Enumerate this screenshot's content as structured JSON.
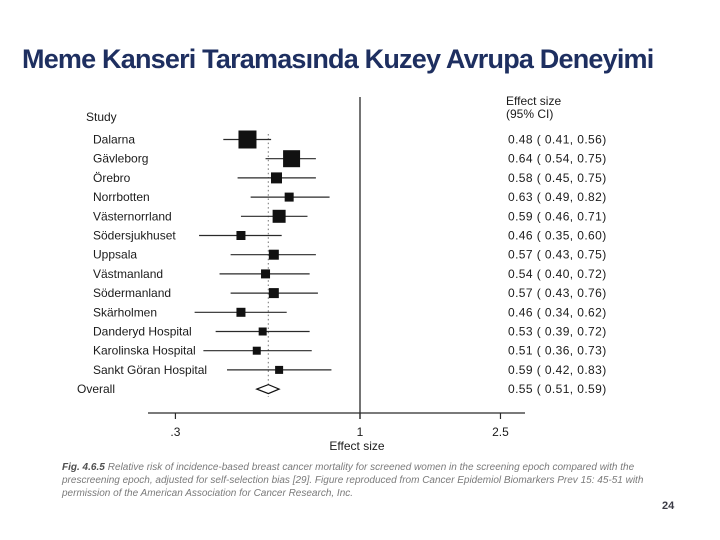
{
  "slide": {
    "title": "Meme Kanseri Taramasında Kuzey Avrupa Deneyimi",
    "page_number": "24",
    "title_color": "#1e2f60"
  },
  "caption": {
    "fig_label": "Fig. 4.6.5",
    "text": "Relative risk of incidence-based breast cancer mortality for screened women in the screening epoch compared with the prescreening epoch, adjusted for self-selection bias [29]. Figure reproduced from Cancer Epidemiol Biomarkers Prev 15: 45-51 with permission of the American Association for Cancer Research, Inc."
  },
  "chart_data": {
    "type": "forest",
    "scale": "log",
    "column_headers": {
      "study": "Study",
      "effect_line1": "Effect size",
      "effect_line2": "(95% CI)"
    },
    "studies": [
      {
        "label": "Dalarna",
        "effect": 0.48,
        "ci_low": 0.41,
        "ci_high": 0.56,
        "display": "0.48 ( 0.41, 0.56)",
        "marker_px": 18
      },
      {
        "label": "Gävleborg",
        "effect": 0.64,
        "ci_low": 0.54,
        "ci_high": 0.75,
        "display": "0.64 ( 0.54, 0.75)",
        "marker_px": 17
      },
      {
        "label": "Örebro",
        "effect": 0.58,
        "ci_low": 0.45,
        "ci_high": 0.75,
        "display": "0.58 ( 0.45, 0.75)",
        "marker_px": 11
      },
      {
        "label": "Norrbotten",
        "effect": 0.63,
        "ci_low": 0.49,
        "ci_high": 0.82,
        "display": "0.63 ( 0.49, 0.82)",
        "marker_px": 9
      },
      {
        "label": "Västernorrland",
        "effect": 0.59,
        "ci_low": 0.46,
        "ci_high": 0.71,
        "display": "0.59 ( 0.46, 0.71)",
        "marker_px": 13
      },
      {
        "label": "Södersjukhuset",
        "effect": 0.46,
        "ci_low": 0.35,
        "ci_high": 0.6,
        "display": "0.46 ( 0.35, 0.60)",
        "marker_px": 9
      },
      {
        "label": "Uppsala",
        "effect": 0.57,
        "ci_low": 0.43,
        "ci_high": 0.75,
        "display": "0.57 ( 0.43, 0.75)",
        "marker_px": 10
      },
      {
        "label": "Västmanland",
        "effect": 0.54,
        "ci_low": 0.4,
        "ci_high": 0.72,
        "display": "0.54 ( 0.40, 0.72)",
        "marker_px": 9
      },
      {
        "label": "Södermanland",
        "effect": 0.57,
        "ci_low": 0.43,
        "ci_high": 0.76,
        "display": "0.57 ( 0.43, 0.76)",
        "marker_px": 10
      },
      {
        "label": "Skärholmen",
        "effect": 0.46,
        "ci_low": 0.34,
        "ci_high": 0.62,
        "display": "0.46 ( 0.34, 0.62)",
        "marker_px": 9
      },
      {
        "label": "Danderyd Hospital",
        "effect": 0.53,
        "ci_low": 0.39,
        "ci_high": 0.72,
        "display": "0.53 ( 0.39, 0.72)",
        "marker_px": 8
      },
      {
        "label": "Karolinska Hospital",
        "effect": 0.51,
        "ci_low": 0.36,
        "ci_high": 0.73,
        "display": "0.51 ( 0.36, 0.73)",
        "marker_px": 8
      },
      {
        "label": "Sankt Göran Hospital",
        "effect": 0.59,
        "ci_low": 0.42,
        "ci_high": 0.83,
        "display": "0.59 ( 0.42, 0.83)",
        "marker_px": 8
      }
    ],
    "overall": {
      "label": "Overall",
      "effect": 0.55,
      "ci_low": 0.51,
      "ci_high": 0.59,
      "display": "0.55 ( 0.51, 0.59)"
    },
    "x_axis": {
      "label": "Effect size",
      "ticks": [
        0.3,
        1,
        2.5
      ],
      "tick_labels": [
        ".3",
        "1",
        "2.5"
      ],
      "ref_line": 1,
      "overall_dashed_line": 0.55
    },
    "colors": {
      "marker": "#111111",
      "line": "#2a2a2a",
      "dashed": "#8a8a8a",
      "text": "#1b1b1b"
    }
  }
}
